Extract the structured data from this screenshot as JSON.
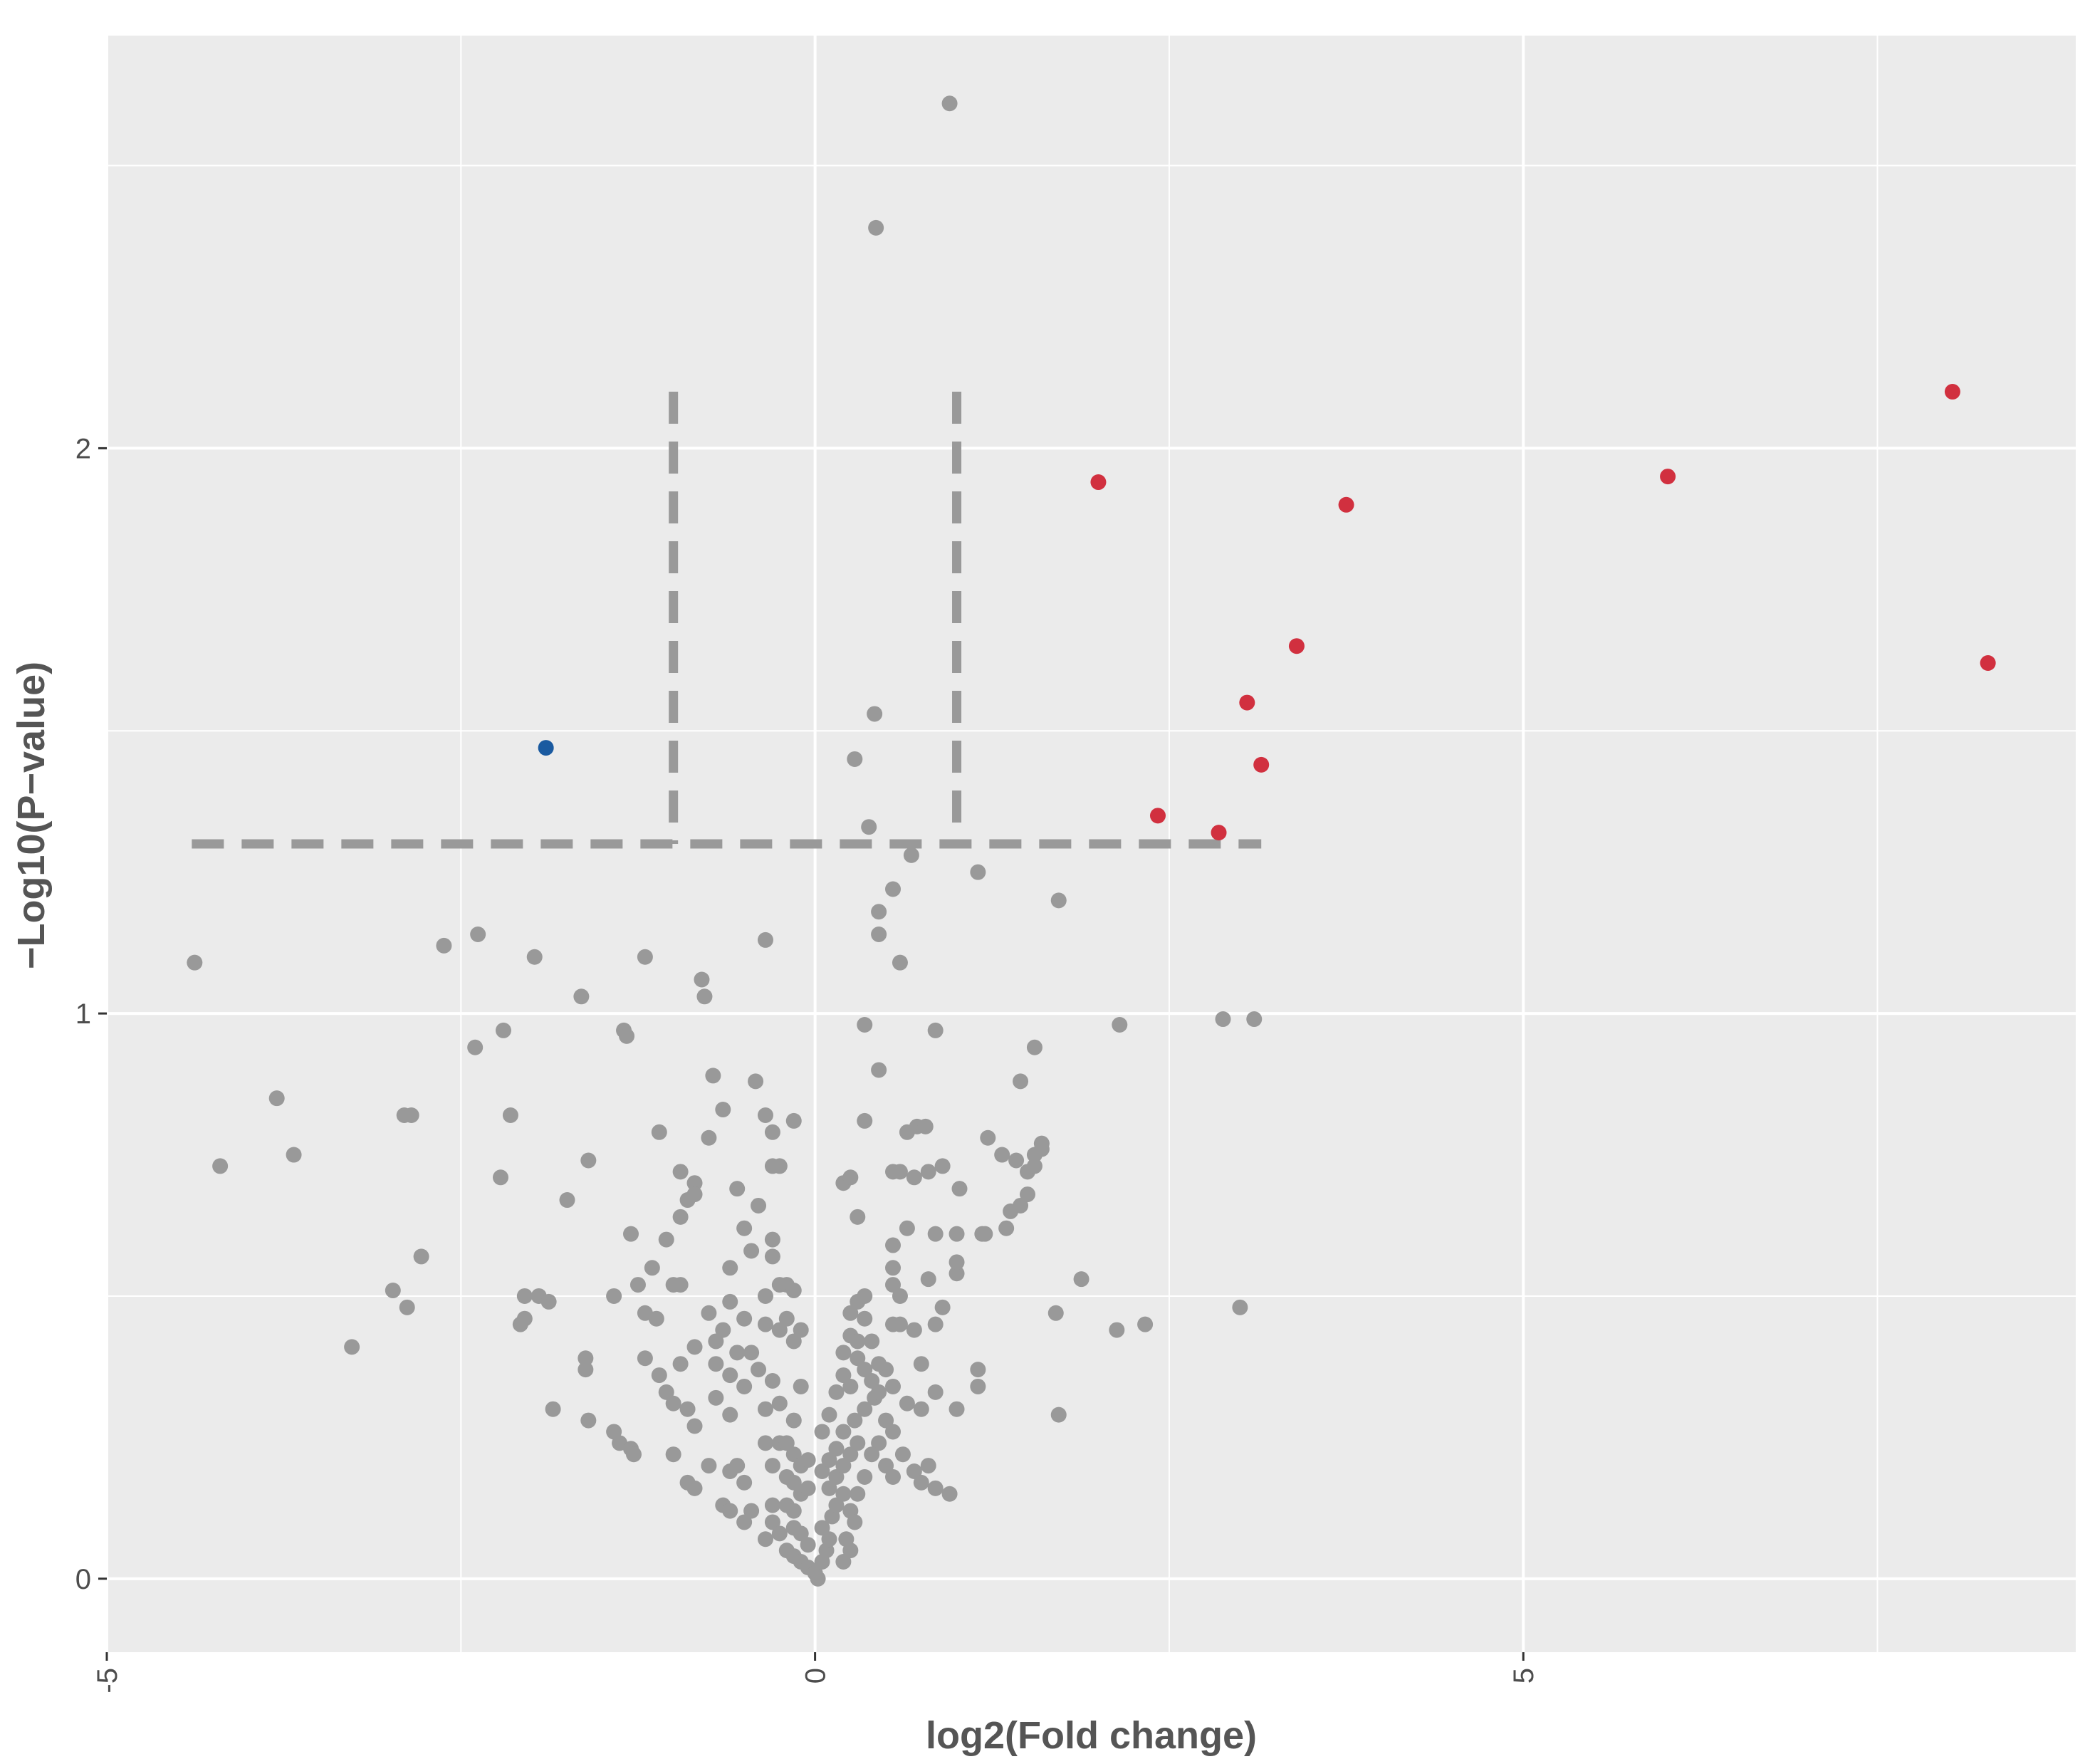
{
  "chart_data": {
    "type": "scatter",
    "title": "",
    "xlabel": "log2(Fold change)",
    "ylabel": "−Log10(P−value)",
    "xlim": [
      -5,
      8.9
    ],
    "ylim": [
      -0.13,
      2.73
    ],
    "x_ticks": [
      -5,
      0,
      5
    ],
    "x_tick_labels": [
      "-5",
      "0",
      "5"
    ],
    "y_ticks": [
      0,
      1,
      2
    ],
    "y_tick_labels": [
      "0",
      "1",
      "2"
    ],
    "x_minor_gridlines": [
      -2.5,
      2.5,
      7.5
    ],
    "y_minor_gridlines": [
      0.5,
      1.5,
      2.5
    ],
    "grid": true,
    "background": "#ebebeb",
    "grid_color": "#ffffff",
    "threshold_lines": {
      "vertical": [
        -1,
        1
      ],
      "vertical_y_range": [
        1.3,
        2.1
      ],
      "horizontal": 1.3,
      "horizontal_x_range": [
        -4.4,
        3.15
      ],
      "color": "#999999",
      "style": "dashed"
    },
    "series": [
      {
        "color": "#d1303f",
        "points": [
          [
            2,
            1.94
          ],
          [
            3.75,
            1.9
          ],
          [
            6.02,
            1.95
          ],
          [
            8.03,
            2.1
          ],
          [
            8.28,
            1.62
          ],
          [
            3.4,
            1.65
          ],
          [
            3.05,
            1.55
          ],
          [
            3.15,
            1.44
          ],
          [
            2.42,
            1.35
          ],
          [
            2.85,
            1.32
          ]
        ]
      },
      {
        "color": "#1a5aa0",
        "points": [
          [
            -1.9,
            1.47
          ]
        ]
      },
      {
        "color": "#999999",
        "points": [
          [
            0.95,
            2.61
          ],
          [
            0.43,
            2.39
          ],
          [
            0.42,
            1.53
          ],
          [
            0.28,
            1.45
          ],
          [
            0.38,
            1.33
          ],
          [
            0.68,
            1.28
          ],
          [
            1.15,
            1.25
          ],
          [
            0.55,
            1.22
          ],
          [
            0.45,
            1.18
          ],
          [
            0.45,
            1.14
          ],
          [
            0.6,
            1.09
          ],
          [
            1.72,
            1.2
          ],
          [
            2.15,
            0.98
          ],
          [
            2.88,
            0.99
          ],
          [
            3.1,
            0.99
          ],
          [
            0.35,
            0.98
          ],
          [
            0.85,
            0.97
          ],
          [
            1.55,
            0.94
          ],
          [
            1.45,
            0.88
          ],
          [
            3.0,
            0.48
          ],
          [
            -4.2,
            0.73
          ],
          [
            -4.38,
            1.09
          ],
          [
            -3.8,
            0.85
          ],
          [
            -3.68,
            0.75
          ],
          [
            -2.62,
            1.12
          ],
          [
            -2.38,
            1.14
          ],
          [
            -1.98,
            1.1
          ],
          [
            -1.65,
            1.03
          ],
          [
            -1.35,
            0.97
          ],
          [
            -1.33,
            0.96
          ],
          [
            -2.2,
            0.97
          ],
          [
            -2.4,
            0.94
          ],
          [
            -1.2,
            1.1
          ],
          [
            -0.8,
            1.06
          ],
          [
            -0.78,
            1.03
          ],
          [
            -0.35,
            1.13
          ],
          [
            -2.15,
            0.82
          ],
          [
            -2.22,
            0.71
          ],
          [
            -1.6,
            0.74
          ],
          [
            -1.75,
            0.67
          ],
          [
            -2.9,
            0.82
          ],
          [
            -2.85,
            0.82
          ],
          [
            -2.78,
            0.57
          ],
          [
            -2.98,
            0.51
          ],
          [
            -2.88,
            0.48
          ],
          [
            -3.27,
            0.41
          ],
          [
            -2.05,
            0.5
          ],
          [
            -1.95,
            0.5
          ],
          [
            -1.88,
            0.49
          ],
          [
            -2.05,
            0.46
          ],
          [
            -2.08,
            0.45
          ],
          [
            -1.62,
            0.39
          ],
          [
            -1.62,
            0.37
          ],
          [
            -1.85,
            0.3
          ],
          [
            -1.6,
            0.28
          ],
          [
            -1.42,
            0.26
          ],
          [
            -1.38,
            0.24
          ],
          [
            -1.3,
            0.23
          ],
          [
            -1.28,
            0.22
          ],
          [
            -1.42,
            0.5
          ],
          [
            -1.2,
            0.47
          ],
          [
            -1.12,
            0.46
          ],
          [
            -1.25,
            0.52
          ],
          [
            -1.15,
            0.55
          ],
          [
            -1.0,
            0.52
          ],
          [
            -0.95,
            0.52
          ],
          [
            -1.2,
            0.39
          ],
          [
            -1.1,
            0.36
          ],
          [
            -1.05,
            0.33
          ],
          [
            -1.0,
            0.31
          ],
          [
            -0.9,
            0.3
          ],
          [
            -0.85,
            0.27
          ],
          [
            -1.3,
            0.61
          ],
          [
            -1.05,
            0.6
          ],
          [
            -0.95,
            0.64
          ],
          [
            -0.9,
            0.67
          ],
          [
            -0.85,
            0.7
          ],
          [
            -0.95,
            0.72
          ],
          [
            -0.85,
            0.68
          ],
          [
            -1.1,
            0.79
          ],
          [
            -0.75,
            0.78
          ],
          [
            -0.65,
            0.83
          ],
          [
            -0.72,
            0.89
          ],
          [
            -0.42,
            0.88
          ],
          [
            -0.35,
            0.82
          ],
          [
            -0.3,
            0.79
          ],
          [
            -0.3,
            0.73
          ],
          [
            -0.25,
            0.73
          ],
          [
            -0.15,
            0.81
          ],
          [
            -0.55,
            0.69
          ],
          [
            -0.4,
            0.66
          ],
          [
            -0.3,
            0.6
          ],
          [
            -0.5,
            0.62
          ],
          [
            -0.6,
            0.55
          ],
          [
            -0.3,
            0.57
          ],
          [
            -0.45,
            0.58
          ],
          [
            -0.25,
            0.52
          ],
          [
            -0.2,
            0.52
          ],
          [
            -0.15,
            0.51
          ],
          [
            -0.35,
            0.5
          ],
          [
            -0.6,
            0.49
          ],
          [
            -0.5,
            0.46
          ],
          [
            -0.75,
            0.47
          ],
          [
            -0.65,
            0.44
          ],
          [
            -0.7,
            0.42
          ],
          [
            -0.55,
            0.4
          ],
          [
            -0.45,
            0.4
          ],
          [
            -0.35,
            0.45
          ],
          [
            -0.25,
            0.44
          ],
          [
            -0.2,
            0.46
          ],
          [
            -0.1,
            0.44
          ],
          [
            -0.15,
            0.42
          ],
          [
            -0.85,
            0.41
          ],
          [
            -0.95,
            0.38
          ],
          [
            -0.7,
            0.38
          ],
          [
            -0.6,
            0.36
          ],
          [
            -0.5,
            0.34
          ],
          [
            -0.4,
            0.37
          ],
          [
            -0.3,
            0.35
          ],
          [
            -0.1,
            0.34
          ],
          [
            -0.7,
            0.32
          ],
          [
            -0.6,
            0.29
          ],
          [
            -0.35,
            0.3
          ],
          [
            -0.25,
            0.31
          ],
          [
            -0.15,
            0.28
          ],
          [
            -1.0,
            0.22
          ],
          [
            -0.9,
            0.17
          ],
          [
            -0.85,
            0.16
          ],
          [
            -0.75,
            0.2
          ],
          [
            -0.6,
            0.19
          ],
          [
            -0.55,
            0.2
          ],
          [
            -0.5,
            0.17
          ],
          [
            -0.35,
            0.24
          ],
          [
            -0.25,
            0.24
          ],
          [
            -0.2,
            0.24
          ],
          [
            -0.15,
            0.22
          ],
          [
            -0.1,
            0.2
          ],
          [
            -0.05,
            0.21
          ],
          [
            -0.3,
            0.2
          ],
          [
            -0.2,
            0.18
          ],
          [
            -0.15,
            0.17
          ],
          [
            -0.1,
            0.15
          ],
          [
            -0.05,
            0.16
          ],
          [
            -0.3,
            0.13
          ],
          [
            -0.2,
            0.13
          ],
          [
            -0.15,
            0.12
          ],
          [
            -0.45,
            0.12
          ],
          [
            -0.5,
            0.1
          ],
          [
            -0.65,
            0.13
          ],
          [
            -0.6,
            0.12
          ],
          [
            -0.3,
            0.1
          ],
          [
            -0.25,
            0.08
          ],
          [
            -0.35,
            0.07
          ],
          [
            -0.15,
            0.09
          ],
          [
            -0.1,
            0.08
          ],
          [
            -0.05,
            0.06
          ],
          [
            -0.2,
            0.05
          ],
          [
            -0.15,
            0.04
          ],
          [
            -0.1,
            0.03
          ],
          [
            -0.05,
            0.02
          ],
          [
            0.0,
            0.01
          ],
          [
            0.02,
            0.0
          ],
          [
            0.05,
            0.03
          ],
          [
            0.08,
            0.05
          ],
          [
            0.1,
            0.07
          ],
          [
            0.05,
            0.09
          ],
          [
            0.12,
            0.11
          ],
          [
            0.15,
            0.13
          ],
          [
            0.2,
            0.15
          ],
          [
            0.25,
            0.12
          ],
          [
            0.28,
            0.1
          ],
          [
            0.1,
            0.16
          ],
          [
            0.15,
            0.18
          ],
          [
            0.2,
            0.2
          ],
          [
            0.05,
            0.19
          ],
          [
            0.1,
            0.21
          ],
          [
            0.15,
            0.23
          ],
          [
            0.25,
            0.22
          ],
          [
            0.3,
            0.24
          ],
          [
            0.2,
            0.26
          ],
          [
            0.28,
            0.28
          ],
          [
            0.35,
            0.3
          ],
          [
            0.42,
            0.32
          ],
          [
            0.5,
            0.28
          ],
          [
            0.55,
            0.26
          ],
          [
            0.45,
            0.24
          ],
          [
            0.4,
            0.22
          ],
          [
            0.5,
            0.2
          ],
          [
            0.55,
            0.18
          ],
          [
            0.62,
            0.22
          ],
          [
            0.7,
            0.19
          ],
          [
            0.75,
            0.17
          ],
          [
            0.85,
            0.16
          ],
          [
            0.95,
            0.15
          ],
          [
            0.8,
            0.2
          ],
          [
            0.35,
            0.18
          ],
          [
            0.3,
            0.15
          ],
          [
            0.25,
            0.05
          ],
          [
            0.2,
            0.03
          ],
          [
            0.22,
            0.07
          ],
          [
            0.05,
            0.26
          ],
          [
            0.1,
            0.29
          ],
          [
            0.15,
            0.33
          ],
          [
            0.2,
            0.36
          ],
          [
            0.25,
            0.34
          ],
          [
            0.3,
            0.39
          ],
          [
            0.35,
            0.37
          ],
          [
            0.4,
            0.35
          ],
          [
            0.45,
            0.33
          ],
          [
            0.5,
            0.37
          ],
          [
            0.55,
            0.34
          ],
          [
            0.65,
            0.31
          ],
          [
            0.75,
            0.3
          ],
          [
            0.85,
            0.33
          ],
          [
            1.0,
            0.3
          ],
          [
            1.15,
            0.34
          ],
          [
            1.15,
            0.37
          ],
          [
            0.2,
            0.4
          ],
          [
            0.25,
            0.43
          ],
          [
            0.3,
            0.42
          ],
          [
            0.35,
            0.46
          ],
          [
            0.25,
            0.47
          ],
          [
            0.3,
            0.49
          ],
          [
            0.35,
            0.5
          ],
          [
            0.4,
            0.42
          ],
          [
            0.45,
            0.38
          ],
          [
            0.55,
            0.45
          ],
          [
            0.6,
            0.45
          ],
          [
            0.7,
            0.44
          ],
          [
            0.85,
            0.45
          ],
          [
            0.9,
            0.48
          ],
          [
            0.75,
            0.38
          ],
          [
            0.6,
            0.5
          ],
          [
            0.55,
            0.52
          ],
          [
            0.55,
            0.55
          ],
          [
            0.8,
            0.53
          ],
          [
            1.0,
            0.54
          ],
          [
            1.0,
            0.56
          ],
          [
            0.55,
            0.59
          ],
          [
            0.65,
            0.62
          ],
          [
            0.85,
            0.61
          ],
          [
            1.0,
            0.61
          ],
          [
            0.3,
            0.64
          ],
          [
            1.18,
            0.61
          ],
          [
            1.2,
            0.61
          ],
          [
            1.35,
            0.62
          ],
          [
            1.38,
            0.65
          ],
          [
            1.45,
            0.66
          ],
          [
            1.5,
            0.68
          ],
          [
            0.2,
            0.7
          ],
          [
            0.25,
            0.71
          ],
          [
            0.55,
            0.72
          ],
          [
            0.6,
            0.72
          ],
          [
            0.7,
            0.71
          ],
          [
            0.8,
            0.72
          ],
          [
            0.9,
            0.73
          ],
          [
            1.02,
            0.69
          ],
          [
            1.5,
            0.72
          ],
          [
            1.55,
            0.73
          ],
          [
            1.55,
            0.75
          ],
          [
            1.6,
            0.76
          ],
          [
            1.42,
            0.74
          ],
          [
            1.32,
            0.75
          ],
          [
            1.22,
            0.78
          ],
          [
            0.65,
            0.79
          ],
          [
            0.72,
            0.8
          ],
          [
            0.78,
            0.8
          ],
          [
            0.35,
            0.81
          ],
          [
            0.45,
            0.9
          ],
          [
            1.6,
            0.77
          ],
          [
            1.88,
            0.53
          ],
          [
            1.7,
            0.47
          ],
          [
            2.13,
            0.44
          ],
          [
            2.33,
            0.45
          ],
          [
            1.72,
            0.29
          ]
        ]
      }
    ]
  }
}
